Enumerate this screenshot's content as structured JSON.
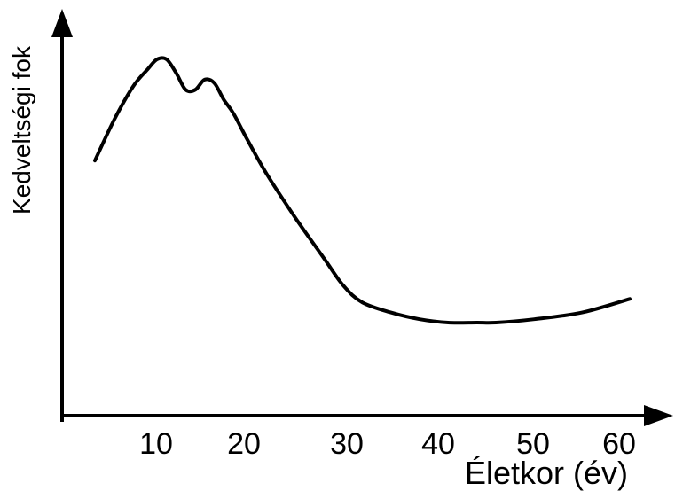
{
  "chart_data": {
    "type": "line",
    "title": "",
    "xlabel": "Életkor (év)",
    "ylabel": "Kedveltségi fok",
    "x_ticks": [
      "10",
      "20",
      "30",
      "40",
      "50",
      "60"
    ],
    "y_ticks": [],
    "xlim": [
      0,
      62
    ],
    "ylim": [
      0,
      100
    ],
    "grid": false,
    "legend": "none",
    "series": [
      {
        "color": "#000000",
        "x": [
          4,
          6,
          8,
          9.5,
          10.5,
          11.5,
          12.5,
          13.5,
          14.5,
          15.5,
          16.5,
          17.5,
          18.5,
          20,
          22,
          25,
          28,
          30,
          32,
          35,
          38,
          41,
          44,
          46,
          50,
          55,
          60
        ],
        "y": [
          70,
          82,
          92,
          97,
          100,
          100,
          96,
          91,
          91,
          94,
          93,
          88,
          84,
          76,
          66,
          53,
          41,
          33,
          28,
          25,
          23,
          22,
          22,
          22,
          23,
          25,
          29
        ]
      }
    ]
  }
}
